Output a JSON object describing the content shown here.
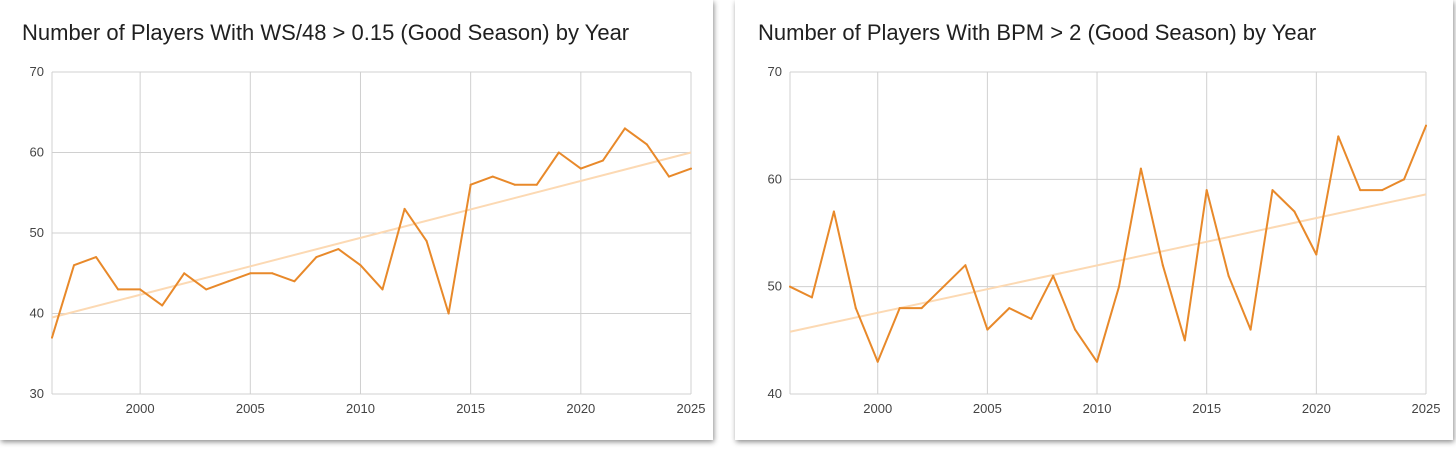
{
  "chart_data": [
    {
      "type": "line",
      "title": "Number of Players With WS/48 > 0.15 (Good Season) by Year",
      "xlabel": "",
      "ylabel": "",
      "xlim": [
        1996,
        2025
      ],
      "ylim": [
        30,
        70
      ],
      "x_ticks": [
        2000,
        2005,
        2010,
        2015,
        2020,
        2025
      ],
      "y_ticks": [
        30,
        40,
        50,
        60,
        70
      ],
      "grid": true,
      "series": [
        {
          "x": [
            1996,
            1997,
            1998,
            1999,
            2000,
            2001,
            2002,
            2003,
            2004,
            2005,
            2006,
            2007,
            2008,
            2009,
            2010,
            2011,
            2012,
            2013,
            2014,
            2015,
            2016,
            2017,
            2018,
            2019,
            2020,
            2021,
            2022,
            2023,
            2024,
            2025
          ],
          "values": [
            37,
            46,
            47,
            43,
            43,
            41,
            45,
            43,
            44,
            45,
            45,
            44,
            47,
            48,
            46,
            43,
            53,
            49,
            40,
            56,
            57,
            56,
            56,
            60,
            58,
            59,
            63,
            61,
            57,
            58
          ],
          "color": "#e8892a"
        }
      ],
      "trendline": {
        "x": [
          1996,
          2025
        ],
        "values": [
          39.5,
          60
        ],
        "color": "#fcd9b3"
      }
    },
    {
      "type": "line",
      "title": "Number of Players With BPM > 2 (Good Season) by Year",
      "xlabel": "",
      "ylabel": "",
      "xlim": [
        1996,
        2025
      ],
      "ylim": [
        40,
        70
      ],
      "x_ticks": [
        2000,
        2005,
        2010,
        2015,
        2020,
        2025
      ],
      "y_ticks": [
        40,
        50,
        60,
        70
      ],
      "grid": true,
      "series": [
        {
          "x": [
            1996,
            1997,
            1998,
            1999,
            2000,
            2001,
            2002,
            2003,
            2004,
            2005,
            2006,
            2007,
            2008,
            2009,
            2010,
            2011,
            2012,
            2013,
            2014,
            2015,
            2016,
            2017,
            2018,
            2019,
            2020,
            2021,
            2022,
            2023,
            2024,
            2025
          ],
          "values": [
            50,
            49,
            57,
            48,
            43,
            48,
            48,
            50,
            52,
            46,
            48,
            47,
            51,
            46,
            43,
            50,
            61,
            52,
            45,
            59,
            51,
            46,
            59,
            57,
            53,
            64,
            59,
            59,
            60,
            65
          ],
          "color": "#e8892a"
        }
      ],
      "trendline": {
        "x": [
          1996,
          2025
        ],
        "values": [
          45.8,
          58.6
        ],
        "color": "#fcd9b3"
      }
    }
  ]
}
